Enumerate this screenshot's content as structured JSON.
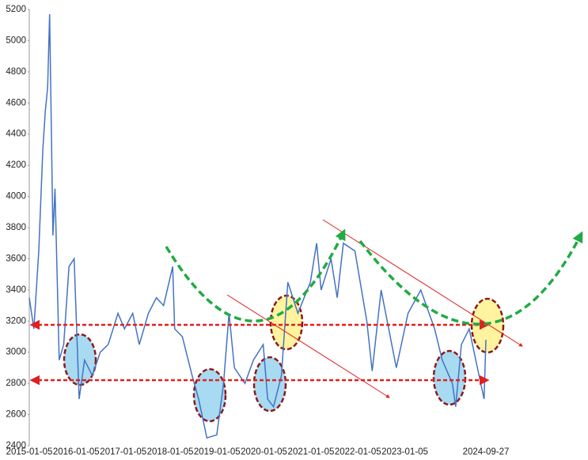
{
  "chart_data": {
    "type": "line",
    "x": [
      "2015-01-05",
      "2015-02-10",
      "2015-03-20",
      "2015-04-20",
      "2015-05-10",
      "2015-05-28",
      "2015-06-12",
      "2015-07-08",
      "2015-07-24",
      "2015-08-26",
      "2015-09-30",
      "2015-11-10",
      "2015-12-20",
      "2016-01-28",
      "2016-03-10",
      "2016-05-10",
      "2016-07-10",
      "2016-09-10",
      "2016-11-25",
      "2017-01-15",
      "2017-03-20",
      "2017-05-10",
      "2017-07-20",
      "2017-09-20",
      "2017-11-15",
      "2018-01-25",
      "2018-02-09",
      "2018-04-10",
      "2018-06-25",
      "2018-08-15",
      "2018-10-18",
      "2019-01-03",
      "2019-02-25",
      "2019-04-08",
      "2019-05-20",
      "2019-08-10",
      "2019-10-15",
      "2019-12-30",
      "2020-02-03",
      "2020-03-19",
      "2020-05-20",
      "2020-07-09",
      "2020-09-25",
      "2020-12-31",
      "2021-02-18",
      "2021-03-25",
      "2021-06-10",
      "2021-07-28",
      "2021-09-14",
      "2021-12-13",
      "2022-03-15",
      "2022-04-26",
      "2022-07-05",
      "2022-10-31",
      "2023-01-30",
      "2023-05-09",
      "2023-08-25",
      "2023-10-23",
      "2024-01-10",
      "2024-02-05",
      "2024-03-20",
      "2024-05-20",
      "2024-07-10",
      "2024-09-13",
      "2024-09-27"
    ],
    "series": [
      {
        "color": "#4472c4",
        "values": [
          3350,
          3150,
          3650,
          4300,
          4550,
          4700,
          5170,
          3750,
          4050,
          2950,
          3050,
          3550,
          3600,
          2700,
          2950,
          2850,
          3000,
          3050,
          3250,
          3150,
          3250,
          3050,
          3250,
          3350,
          3300,
          3550,
          3150,
          3100,
          2850,
          2700,
          2450,
          2470,
          2800,
          3250,
          2900,
          2800,
          2950,
          3050,
          2700,
          2650,
          2850,
          3450,
          3250,
          3450,
          3700,
          3400,
          3600,
          3350,
          3700,
          3650,
          3200,
          2880,
          3400,
          2900,
          3250,
          3400,
          3150,
          2950,
          2800,
          2650,
          3050,
          3150,
          2950,
          2700,
          3080
        ]
      }
    ],
    "xlim": [
      "2015-01-05",
      "2024-09-27"
    ],
    "xticks": [
      "2015-01-05",
      "2016-01-05",
      "2017-01-05",
      "2018-01-05",
      "2019-01-05",
      "2020-01-05",
      "2021-01-05",
      "2022-01-05",
      "2023-01-05",
      "2024-09-27"
    ],
    "ylim": [
      2400,
      5200
    ],
    "yticks": [
      2400,
      2600,
      2800,
      3000,
      3200,
      3400,
      3600,
      3800,
      4000,
      4200,
      4400,
      4600,
      4800,
      5000,
      5200
    ],
    "grid": false
  }
}
